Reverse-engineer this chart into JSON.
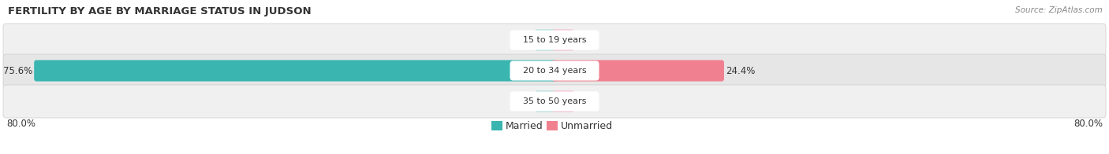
{
  "title": "FERTILITY BY AGE BY MARRIAGE STATUS IN JUDSON",
  "source": "Source: ZipAtlas.com",
  "categories": [
    "15 to 19 years",
    "20 to 34 years",
    "35 to 50 years"
  ],
  "married_values": [
    0.0,
    75.6,
    0.0
  ],
  "unmarried_values": [
    0.0,
    24.4,
    0.0
  ],
  "max_val": 80.0,
  "married_color": "#3ab5b0",
  "unmarried_color": "#f08090",
  "married_color_light": "#a8d8d8",
  "unmarried_color_light": "#f4b8c8",
  "row_bg_odd": "#f0f0f0",
  "row_bg_even": "#e6e6e6",
  "label_pill_color": "#ffffff",
  "title_fontsize": 9.5,
  "label_fontsize": 8.5,
  "tick_fontsize": 8.5,
  "legend_fontsize": 9,
  "background_color": "#ffffff",
  "title_color": "#333333",
  "source_color": "#888888",
  "value_color": "#333333"
}
